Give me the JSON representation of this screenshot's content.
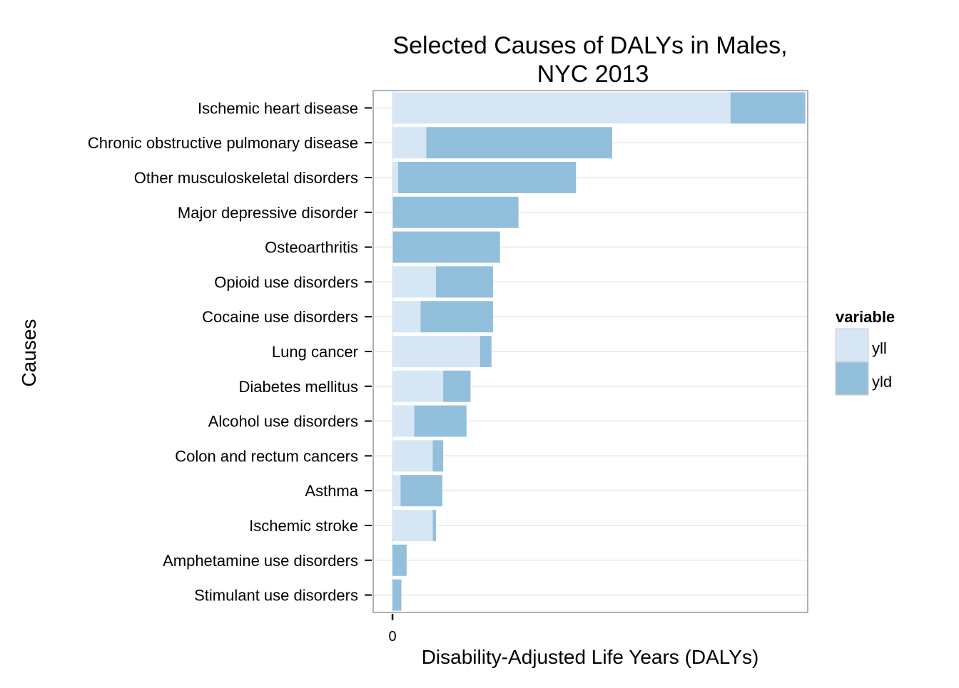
{
  "chart_data": {
    "type": "bar",
    "orientation": "horizontal",
    "stacked": true,
    "title_line1": "Selected Causes of DALYs in Males,",
    "title_line2": "NYC 2013",
    "xlabel": "Disability-Adjusted Life Years (DALYs)",
    "ylabel": "Causes",
    "x_tick_labels": [
      "0"
    ],
    "xlim": [
      -120,
      2580
    ],
    "grid": true,
    "legend": {
      "title": "variable",
      "placement": "right",
      "entries": [
        {
          "label": "yll",
          "color": "#d6e6f4"
        },
        {
          "label": "yld",
          "color": "#92bfdc"
        }
      ]
    },
    "categories": [
      "Ischemic heart disease",
      "Chronic obstructive pulmonary disease",
      "Other musculoskeletal disorders",
      "Major depressive disorder",
      "Osteoarthritis",
      "Opioid use disorders",
      "Cocaine use disorders",
      "Lung cancer",
      "Diabetes mellitus",
      "Alcohol use disorders",
      "Colon and rectum cancers",
      "Asthma",
      "Ischemic stroke",
      "Amphetamine use disorders",
      "Stimulant use disorders"
    ],
    "series": [
      {
        "name": "yll",
        "color": "#d6e6f4",
        "values": [
          2100,
          210,
          35,
          3,
          3,
          270,
          175,
          545,
          315,
          135,
          250,
          50,
          250,
          0,
          0
        ]
      },
      {
        "name": "yld",
        "color": "#92bfdc",
        "values": [
          465,
          1155,
          1105,
          780,
          665,
          355,
          450,
          70,
          170,
          325,
          65,
          260,
          20,
          88,
          55
        ]
      }
    ]
  }
}
